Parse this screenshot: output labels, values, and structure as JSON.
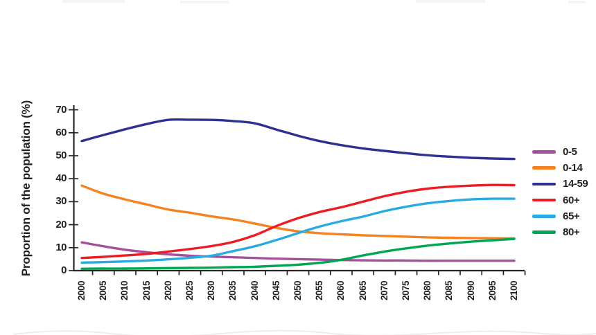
{
  "colors": {
    "axis": "#2b2526",
    "text": "#231F20",
    "background": "#ffffff"
  },
  "chart_data": {
    "type": "line",
    "title": "",
    "xlabel": "",
    "ylabel": "Proportion of the population (%)",
    "x": [
      2000,
      2005,
      2010,
      2015,
      2020,
      2025,
      2030,
      2035,
      2040,
      2045,
      2050,
      2055,
      2060,
      2065,
      2070,
      2075,
      2080,
      2085,
      2090,
      2095,
      2100
    ],
    "x_tick_labels": [
      "2000",
      "2005",
      "2010",
      "2015",
      "2020",
      "2025",
      "2030",
      "2035",
      "2040",
      "2045",
      "2050",
      "2055",
      "2060",
      "2065",
      "2070",
      "2075",
      "2080",
      "2085",
      "2090",
      "2095",
      "2100"
    ],
    "y_ticks": [
      0,
      10,
      20,
      30,
      40,
      50,
      60,
      70
    ],
    "ylim": [
      0,
      70
    ],
    "xlim": [
      2000,
      2100
    ],
    "grid": false,
    "legend_position": "right",
    "series": [
      {
        "name": "0-5",
        "color": "#A4509B",
        "values": [
          12.3,
          10.6,
          9.1,
          8.0,
          7.1,
          6.5,
          6.1,
          5.8,
          5.5,
          5.2,
          5.0,
          4.8,
          4.6,
          4.5,
          4.4,
          4.4,
          4.3,
          4.3,
          4.3,
          4.3,
          4.3
        ]
      },
      {
        "name": "0-14",
        "color": "#F58220",
        "values": [
          37.0,
          33.5,
          31.0,
          28.8,
          26.6,
          25.2,
          23.6,
          22.3,
          20.5,
          18.6,
          17.1,
          16.3,
          15.8,
          15.4,
          15.1,
          14.8,
          14.5,
          14.3,
          14.2,
          14.1,
          14.0
        ]
      },
      {
        "name": "14-59",
        "color": "#2E3192",
        "values": [
          56.4,
          59.0,
          61.5,
          63.8,
          65.6,
          65.7,
          65.6,
          65.1,
          64.1,
          61.4,
          58.7,
          56.4,
          54.6,
          53.2,
          52.1,
          51.1,
          50.2,
          49.6,
          49.1,
          48.8,
          48.6
        ]
      },
      {
        "name": "60+",
        "color": "#EC1C24",
        "values": [
          5.5,
          6.0,
          6.6,
          7.3,
          8.3,
          9.4,
          10.7,
          12.5,
          15.4,
          19.4,
          22.8,
          25.5,
          27.6,
          30.0,
          32.4,
          34.3,
          35.7,
          36.5,
          37.0,
          37.3,
          37.2
        ]
      },
      {
        "name": "65+",
        "color": "#29ABE2",
        "values": [
          3.5,
          3.7,
          4.0,
          4.4,
          4.9,
          5.6,
          6.5,
          8.5,
          10.6,
          13.3,
          16.3,
          19.2,
          21.5,
          23.5,
          25.9,
          27.8,
          29.3,
          30.3,
          31.0,
          31.3,
          31.3
        ]
      },
      {
        "name": "80+",
        "color": "#00A651",
        "values": [
          0.8,
          0.9,
          0.9,
          1.0,
          1.1,
          1.2,
          1.3,
          1.5,
          1.7,
          2.1,
          2.6,
          3.4,
          4.7,
          6.6,
          8.3,
          9.7,
          10.9,
          11.8,
          12.6,
          13.2,
          13.8
        ]
      }
    ]
  }
}
